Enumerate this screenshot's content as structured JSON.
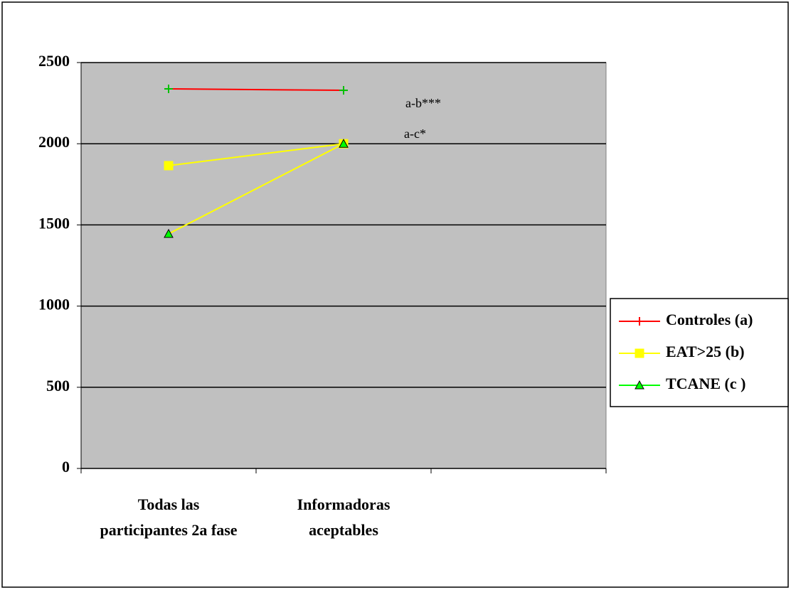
{
  "chart_data": {
    "type": "line",
    "categories": [
      "Todas las participantes 2a fase",
      "Informadoras aceptables",
      null
    ],
    "series": [
      {
        "name": "Controles (a)",
        "color": "#ff0000",
        "marker": "plus",
        "marker_color": "#00c000",
        "values": [
          2338,
          2329,
          null
        ]
      },
      {
        "name": "EAT>25 (b)",
        "color": "#ffff00",
        "marker": "square",
        "marker_color": "#ffff00",
        "values": [
          1865,
          2000,
          null
        ]
      },
      {
        "name": "TCANE (c )",
        "color": "#ffff00",
        "marker": "triangle",
        "marker_color": "#00ff00",
        "values": [
          1445,
          2000,
          null
        ]
      }
    ],
    "annotations": [
      "a-b***",
      "a-c*"
    ],
    "ylim": [
      0,
      2500
    ],
    "yticks": [
      0,
      500,
      1000,
      1500,
      2000,
      2500
    ],
    "grid": true,
    "legend": "right"
  }
}
